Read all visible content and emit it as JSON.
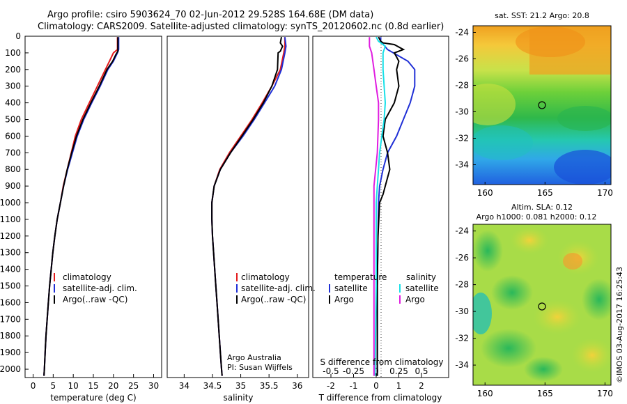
{
  "header": {
    "title_line1": "Argo profile: csiro 5903624_70 02-Jun-2012 29.528S 164.68E (DM data)",
    "title_line2": "Climatology: CARS2009. Satellite-adjusted climatology: synTS_20120602.nc (0.8d earlier)"
  },
  "credits": {
    "program": "Argo Australia",
    "pi": "PI: Susan Wijffels",
    "footer": "©IMOS 03-Aug-2017 16:25:43"
  },
  "colors": {
    "climatology": "#e31a1c",
    "satellite": "#1f2fd6",
    "argo": "#000000",
    "cyan": "#18e0e8",
    "magenta": "#e01ce0"
  },
  "chart_data": [
    {
      "id": "temperature",
      "type": "line",
      "xlabel": "temperature (deg C)",
      "xlim": [
        -2,
        32
      ],
      "xticks": [
        0,
        5,
        10,
        15,
        20,
        25,
        30
      ],
      "ylim": [
        2050,
        0
      ],
      "yticks": [
        0,
        100,
        200,
        300,
        400,
        500,
        600,
        700,
        800,
        900,
        1000,
        1100,
        1200,
        1300,
        1400,
        1500,
        1600,
        1700,
        1800,
        1900,
        2000
      ],
      "legend": [
        "climatology",
        "satellite-adj. clim.",
        "Argo(..raw -QC)"
      ],
      "series": [
        {
          "name": "climatology",
          "color_key": "climatology",
          "points": [
            [
              21,
              5
            ],
            [
              21,
              50
            ],
            [
              21,
              80
            ],
            [
              20,
              100
            ],
            [
              19,
              150
            ],
            [
              18,
              200
            ],
            [
              16,
              300
            ],
            [
              14,
              400
            ],
            [
              12,
              500
            ],
            [
              10.5,
              600
            ],
            [
              9.5,
              700
            ],
            [
              8.5,
              800
            ],
            [
              7.5,
              900
            ],
            [
              6.8,
              1000
            ],
            [
              6,
              1100
            ],
            [
              5.4,
              1200
            ],
            [
              4.9,
              1300
            ],
            [
              4.5,
              1400
            ],
            [
              4.1,
              1500
            ],
            [
              3.8,
              1600
            ],
            [
              3.5,
              1700
            ],
            [
              3.2,
              1800
            ],
            [
              3,
              1900
            ],
            [
              2.8,
              2000
            ],
            [
              2.7,
              2040
            ]
          ]
        },
        {
          "name": "satellite-adj. clim.",
          "color_key": "satellite",
          "points": [
            [
              21.3,
              5
            ],
            [
              21.3,
              50
            ],
            [
              21.3,
              80
            ],
            [
              21,
              100
            ],
            [
              20,
              150
            ],
            [
              18.6,
              200
            ],
            [
              16.7,
              300
            ],
            [
              14.6,
              400
            ],
            [
              12.6,
              500
            ],
            [
              11,
              600
            ],
            [
              9.8,
              700
            ],
            [
              8.6,
              800
            ],
            [
              7.6,
              900
            ],
            [
              6.8,
              1000
            ],
            [
              6,
              1100
            ],
            [
              5.4,
              1200
            ],
            [
              4.9,
              1300
            ],
            [
              4.5,
              1400
            ],
            [
              4.1,
              1500
            ],
            [
              3.8,
              1600
            ],
            [
              3.5,
              1700
            ],
            [
              3.2,
              1800
            ],
            [
              3,
              1900
            ],
            [
              2.8,
              2000
            ],
            [
              2.7,
              2040
            ]
          ]
        },
        {
          "name": "Argo(..raw -QC)",
          "color_key": "argo",
          "points": [
            [
              21.1,
              5
            ],
            [
              21.1,
              50
            ],
            [
              21.1,
              90
            ],
            [
              20.6,
              110
            ],
            [
              19.8,
              150
            ],
            [
              18.4,
              200
            ],
            [
              16.5,
              300
            ],
            [
              14.4,
              400
            ],
            [
              12.4,
              500
            ],
            [
              10.8,
              600
            ],
            [
              9.6,
              700
            ],
            [
              8.5,
              800
            ],
            [
              7.6,
              900
            ],
            [
              6.8,
              1000
            ],
            [
              6,
              1100
            ],
            [
              5.4,
              1200
            ],
            [
              4.9,
              1300
            ],
            [
              4.5,
              1400
            ],
            [
              4.1,
              1500
            ],
            [
              3.8,
              1600
            ],
            [
              3.5,
              1700
            ],
            [
              3.2,
              1800
            ],
            [
              3,
              1900
            ],
            [
              2.8,
              2000
            ],
            [
              2.7,
              2040
            ]
          ]
        }
      ]
    },
    {
      "id": "salinity",
      "type": "line",
      "xlabel": "salinity",
      "xlim": [
        33.7,
        36.2
      ],
      "xticks": [
        34,
        34.5,
        35,
        35.5,
        36
      ],
      "xtick_labels": [
        "34",
        "34.5",
        "35",
        "35.5",
        "36"
      ],
      "ylim": [
        2050,
        0
      ],
      "legend": [
        "climatology",
        "satellite-adj. clim.",
        "Argo(..raw -QC)"
      ],
      "series": [
        {
          "name": "climatology",
          "color_key": "climatology",
          "points": [
            [
              35.78,
              5
            ],
            [
              35.78,
              60
            ],
            [
              35.76,
              100
            ],
            [
              35.7,
              200
            ],
            [
              35.55,
              300
            ],
            [
              35.38,
              400
            ],
            [
              35.2,
              500
            ],
            [
              35,
              600
            ],
            [
              34.8,
              700
            ],
            [
              34.63,
              800
            ],
            [
              34.53,
              900
            ],
            [
              34.49,
              1000
            ],
            [
              34.49,
              1100
            ],
            [
              34.5,
              1200
            ],
            [
              34.52,
              1300
            ],
            [
              34.54,
              1400
            ],
            [
              34.56,
              1500
            ],
            [
              34.58,
              1600
            ],
            [
              34.6,
              1700
            ],
            [
              34.62,
              1800
            ],
            [
              34.64,
              1900
            ],
            [
              34.66,
              2000
            ],
            [
              34.67,
              2040
            ]
          ]
        },
        {
          "name": "satellite-adj. clim.",
          "color_key": "satellite",
          "points": [
            [
              35.78,
              5
            ],
            [
              35.8,
              60
            ],
            [
              35.78,
              100
            ],
            [
              35.72,
              200
            ],
            [
              35.6,
              300
            ],
            [
              35.42,
              400
            ],
            [
              35.24,
              500
            ],
            [
              35.04,
              600
            ],
            [
              34.82,
              700
            ],
            [
              34.64,
              800
            ],
            [
              34.53,
              900
            ],
            [
              34.49,
              1000
            ],
            [
              34.49,
              1100
            ],
            [
              34.5,
              1200
            ],
            [
              34.52,
              1300
            ],
            [
              34.54,
              1400
            ],
            [
              34.56,
              1500
            ],
            [
              34.58,
              1600
            ],
            [
              34.6,
              1700
            ],
            [
              34.62,
              1800
            ],
            [
              34.64,
              1900
            ],
            [
              34.66,
              2000
            ],
            [
              34.67,
              2040
            ]
          ]
        },
        {
          "name": "Argo(..raw -QC)",
          "color_key": "argo",
          "points": [
            [
              35.72,
              5
            ],
            [
              35.7,
              40
            ],
            [
              35.74,
              60
            ],
            [
              35.7,
              90
            ],
            [
              35.66,
              100
            ],
            [
              35.65,
              200
            ],
            [
              35.55,
              300
            ],
            [
              35.4,
              400
            ],
            [
              35.22,
              500
            ],
            [
              35.02,
              600
            ],
            [
              34.82,
              700
            ],
            [
              34.64,
              800
            ],
            [
              34.53,
              900
            ],
            [
              34.49,
              1000
            ],
            [
              34.49,
              1100
            ],
            [
              34.5,
              1200
            ],
            [
              34.52,
              1300
            ],
            [
              34.54,
              1400
            ],
            [
              34.56,
              1500
            ],
            [
              34.58,
              1600
            ],
            [
              34.6,
              1700
            ],
            [
              34.62,
              1800
            ],
            [
              34.64,
              1900
            ],
            [
              34.66,
              2000
            ],
            [
              34.67,
              2040
            ]
          ]
        }
      ]
    },
    {
      "id": "differences",
      "type": "line",
      "xlabel": "T difference from climatology",
      "xlabel_top": "S difference from climatology",
      "xlim": [
        -2.8,
        3.2
      ],
      "xticks": [
        -2,
        -1,
        0,
        1,
        2
      ],
      "top_tick_labels": [
        "-0.5",
        "-0.25",
        "0",
        "0.25",
        "0.5"
      ],
      "ylim": [
        2050,
        0
      ],
      "legend": {
        "temperature_header": "temperature",
        "salinity_header": "salinity",
        "items": [
          {
            "label": "satellite",
            "color_key": "satellite"
          },
          {
            "label": "Argo",
            "color_key": "argo"
          },
          {
            "label": "satellite",
            "color_key": "cyan"
          },
          {
            "label": "Argo",
            "color_key": "magenta"
          }
        ]
      },
      "series": [
        {
          "name": "satellite",
          "quantity": "T",
          "color_key": "satellite",
          "points": [
            [
              0.2,
              5
            ],
            [
              0.2,
              30
            ],
            [
              0.5,
              80
            ],
            [
              1.4,
              150
            ],
            [
              1.7,
              200
            ],
            [
              1.7,
              300
            ],
            [
              1.5,
              400
            ],
            [
              1.2,
              500
            ],
            [
              0.9,
              600
            ],
            [
              0.5,
              700
            ],
            [
              0.3,
              800
            ],
            [
              0.15,
              900
            ],
            [
              0.1,
              1000
            ],
            [
              0.08,
              1200
            ],
            [
              0.05,
              1500
            ],
            [
              0.05,
              2000
            ],
            [
              0.05,
              2040
            ]
          ]
        },
        {
          "name": "Argo",
          "quantity": "T",
          "color_key": "argo",
          "points": [
            [
              0.1,
              5
            ],
            [
              0.2,
              30
            ],
            [
              0.3,
              40
            ],
            [
              0.8,
              50
            ],
            [
              1.2,
              80
            ],
            [
              0.8,
              100
            ],
            [
              1.0,
              150
            ],
            [
              0.9,
              200
            ],
            [
              1.0,
              300
            ],
            [
              0.8,
              400
            ],
            [
              0.4,
              500
            ],
            [
              0.3,
              600
            ],
            [
              0.5,
              700
            ],
            [
              0.6,
              800
            ],
            [
              0.4,
              900
            ],
            [
              0.3,
              950
            ],
            [
              0.15,
              1000
            ],
            [
              0.08,
              1200
            ],
            [
              0.05,
              1500
            ],
            [
              0.05,
              2000
            ],
            [
              0.05,
              2040
            ]
          ]
        },
        {
          "name": "satellite",
          "quantity": "S",
          "color_key": "cyan",
          "points": [
            [
              0,
              5
            ],
            [
              0.1,
              30
            ],
            [
              0.4,
              60
            ],
            [
              0.3,
              100
            ],
            [
              0.3,
              200
            ],
            [
              0.35,
              300
            ],
            [
              0.4,
              400
            ],
            [
              0.35,
              500
            ],
            [
              0.25,
              600
            ],
            [
              0.15,
              700
            ],
            [
              0.1,
              800
            ],
            [
              0.05,
              900
            ],
            [
              0,
              1000
            ],
            [
              0,
              1200
            ],
            [
              0,
              1500
            ],
            [
              -0.05,
              2000
            ],
            [
              -0.05,
              2040
            ]
          ]
        },
        {
          "name": "Argo",
          "quantity": "S",
          "color_key": "magenta",
          "points": [
            [
              -0.3,
              5
            ],
            [
              -0.3,
              30
            ],
            [
              -0.3,
              60
            ],
            [
              -0.2,
              100
            ],
            [
              -0.1,
              200
            ],
            [
              0,
              300
            ],
            [
              0.1,
              400
            ],
            [
              0.1,
              500
            ],
            [
              0.05,
              700
            ],
            [
              -0.1,
              900
            ],
            [
              -0.1,
              1000
            ],
            [
              -0.1,
              1200
            ],
            [
              -0.1,
              1500
            ],
            [
              -0.1,
              2000
            ],
            [
              -0.1,
              2040
            ]
          ]
        }
      ]
    },
    {
      "id": "sst_map",
      "type": "heatmap",
      "title": "sat. SST: 21.2 Argo: 20.8",
      "xlim": [
        159,
        170.5
      ],
      "ylim": [
        -35.5,
        -23.5
      ],
      "xticks": [
        160,
        165,
        170
      ],
      "yticks": [
        -24,
        -26,
        -28,
        -30,
        -32,
        -34
      ],
      "marker": {
        "lon": 164.68,
        "lat": -29.528
      }
    },
    {
      "id": "sla_map",
      "type": "heatmap",
      "title_line1": "Altim. SLA: 0.12",
      "title_line2": "Argo h1000: 0.081 h2000: 0.12",
      "xlim": [
        159,
        170.5
      ],
      "ylim": [
        -35.5,
        -23.5
      ],
      "xticks": [
        160,
        165,
        170
      ],
      "yticks": [
        -24,
        -26,
        -28,
        -30,
        -32,
        -34
      ],
      "marker": {
        "lon": 164.68,
        "lat": -29.528
      }
    }
  ]
}
